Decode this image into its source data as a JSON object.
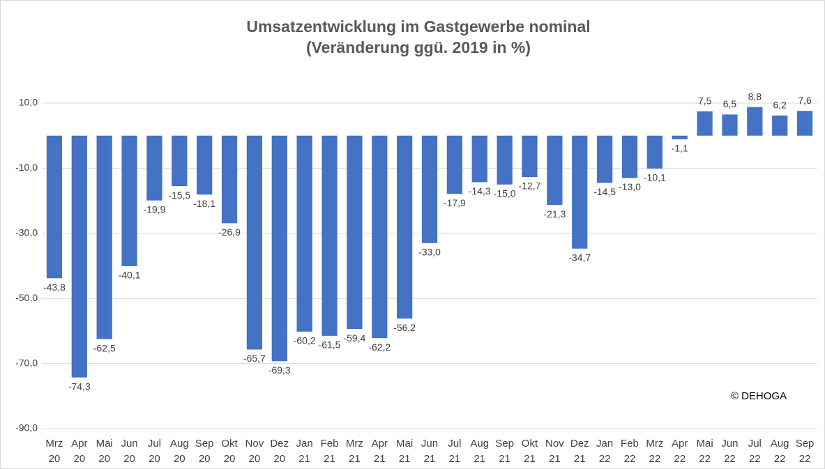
{
  "chart_data": {
    "type": "bar",
    "title": "Umsatzentwicklung im Gastgewerbe nominal",
    "subtitle": "(Veränderung ggü. 2019 in %)",
    "annotation": "© DEHOGA",
    "categories": [
      "Mrz 20",
      "Apr 20",
      "Mai 20",
      "Jun 20",
      "Jul 20",
      "Aug 20",
      "Sep 20",
      "Okt 20",
      "Nov 20",
      "Dez 20",
      "Jan 21",
      "Feb 21",
      "Mrz 21",
      "Apr 21",
      "Mai 21",
      "Jun 21",
      "Jul 21",
      "Aug 21",
      "Sep 21",
      "Okt 21",
      "Nov 21",
      "Dez 21",
      "Jan 22",
      "Feb 22",
      "Mrz 22",
      "Apr 22",
      "Mai 22",
      "Jun 22",
      "Jul 22",
      "Aug 22",
      "Sep 22"
    ],
    "values": [
      -43.8,
      -74.3,
      -62.5,
      -40.1,
      -19.9,
      -15.5,
      -18.1,
      -26.9,
      -65.7,
      -69.3,
      -60.2,
      -61.5,
      -59.4,
      -62.2,
      -56.2,
      -33.0,
      -17.9,
      -14.3,
      -15.0,
      -12.7,
      -21.3,
      -34.7,
      -14.5,
      -13.0,
      -10.1,
      -1.1,
      7.5,
      6.5,
      8.8,
      6.2,
      7.6
    ],
    "value_labels": [
      "-43,8",
      "-74,3",
      "-62,5",
      "-40,1",
      "-19,9",
      "-15,5",
      "-18,1",
      "-26,9",
      "-65,7",
      "-69,3",
      "-60,2",
      "-61,5",
      "-59,4",
      "-62,2",
      "-56,2",
      "-33,0",
      "-17,9",
      "-14,3",
      "-15,0",
      "-12,7",
      "-21,3",
      "-34,7",
      "-14,5",
      "-13,0",
      "-10,1",
      "-1,1",
      "7,5",
      "6,5",
      "8,8",
      "6,2",
      "7,6"
    ],
    "color": "#4472c4",
    "ylim": [
      -90,
      10
    ],
    "yticks": [
      {
        "value": 10,
        "label": "10,0"
      },
      {
        "value": -10,
        "label": "-10,0"
      },
      {
        "value": -30,
        "label": "-30,0"
      },
      {
        "value": -50,
        "label": "-50,0"
      },
      {
        "value": -70,
        "label": "-70,0"
      },
      {
        "value": -90,
        "label": "-90,0"
      }
    ],
    "grid": true
  }
}
